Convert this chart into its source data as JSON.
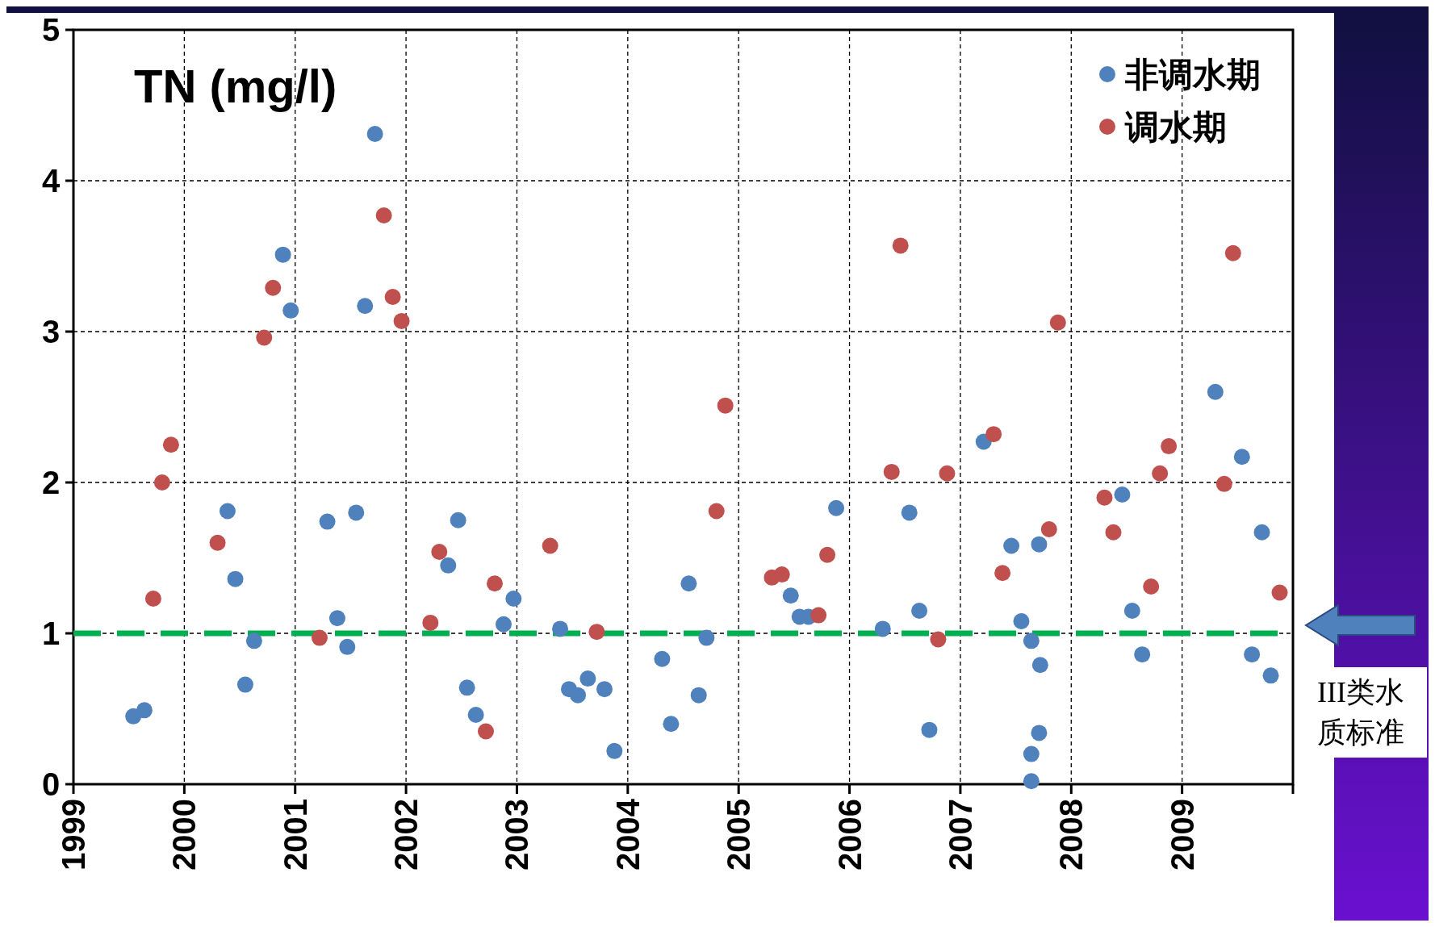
{
  "chart_data": {
    "type": "scatter",
    "title": "TN (mg/l)",
    "xlim": [
      1999,
      2010
    ],
    "xticks": [
      1999,
      2000,
      2001,
      2002,
      2003,
      2004,
      2005,
      2006,
      2007,
      2008,
      2009,
      {
        "value": 2010,
        "label": null
      }
    ],
    "ylim": [
      0,
      5
    ],
    "yticks": [
      0,
      1,
      2,
      3,
      4,
      5
    ],
    "grid": true,
    "legend": "top right",
    "marker": "circle",
    "ref_lines": [
      {
        "axis": "y",
        "value": 1,
        "label": "III类水质标准",
        "color": "#00b050",
        "line_style": "dashed"
      }
    ],
    "series": [
      {
        "name": "非调水期",
        "color": "#4f81bd",
        "x": [
          1999.54,
          1999.64,
          2000.39,
          2000.46,
          2000.55,
          2000.63,
          2000.89,
          2000.96,
          2001.29,
          2001.38,
          2001.47,
          2001.55,
          2001.63,
          2001.72,
          2002.38,
          2002.47,
          2002.55,
          2002.63,
          2002.88,
          2002.97,
          2003.39,
          2003.47,
          2003.55,
          2003.64,
          2003.79,
          2003.88,
          2004.31,
          2004.39,
          2004.55,
          2004.64,
          2004.71,
          2005.47,
          2005.55,
          2005.63,
          2005.88,
          2006.3,
          2006.54,
          2006.63,
          2006.72,
          2007.21,
          2007.46,
          2007.55,
          2007.64,
          2007.64,
          2007.64,
          2007.71,
          2007.72,
          2007.71,
          2008.46,
          2008.55,
          2008.64,
          2009.3,
          2009.54,
          2009.72,
          2009.63,
          2009.8
        ],
        "values": [
          0.45,
          0.49,
          1.81,
          1.36,
          0.66,
          0.95,
          3.51,
          3.14,
          1.74,
          1.1,
          0.91,
          1.8,
          3.17,
          4.31,
          1.45,
          1.75,
          0.64,
          0.46,
          1.06,
          1.23,
          1.03,
          0.63,
          0.59,
          0.7,
          0.63,
          0.22,
          0.83,
          0.4,
          1.33,
          0.59,
          0.97,
          1.25,
          1.11,
          1.11,
          1.83,
          1.03,
          1.8,
          1.15,
          0.36,
          2.27,
          1.58,
          1.08,
          0.95,
          0.2,
          0.02,
          1.59,
          0.79,
          0.34,
          1.92,
          1.15,
          0.86,
          2.6,
          2.17,
          1.67,
          0.86,
          0.72
        ]
      },
      {
        "name": "调水期",
        "color": "#c0504d",
        "x": [
          1999.72,
          1999.8,
          1999.88,
          2000.3,
          2000.72,
          2000.8,
          2001.22,
          2001.8,
          2001.88,
          2001.96,
          2002.22,
          2002.3,
          2002.72,
          2002.8,
          2003.3,
          2003.72,
          2004.8,
          2004.88,
          2005.3,
          2005.39,
          2005.72,
          2005.8,
          2006.38,
          2006.46,
          2006.8,
          2006.88,
          2007.3,
          2007.38,
          2007.8,
          2007.88,
          2008.3,
          2008.38,
          2008.72,
          2008.8,
          2008.88,
          2009.38,
          2009.46,
          2009.88
        ],
        "values": [
          1.23,
          2.0,
          2.25,
          1.6,
          2.96,
          3.29,
          0.97,
          3.77,
          3.23,
          3.07,
          1.07,
          1.54,
          0.35,
          1.33,
          1.58,
          1.01,
          1.81,
          2.51,
          1.37,
          1.39,
          1.12,
          1.52,
          2.07,
          3.57,
          0.96,
          2.06,
          2.32,
          1.4,
          1.69,
          3.06,
          1.9,
          1.67,
          1.31,
          2.06,
          2.24,
          1.99,
          3.52,
          1.27
        ]
      }
    ]
  }
}
